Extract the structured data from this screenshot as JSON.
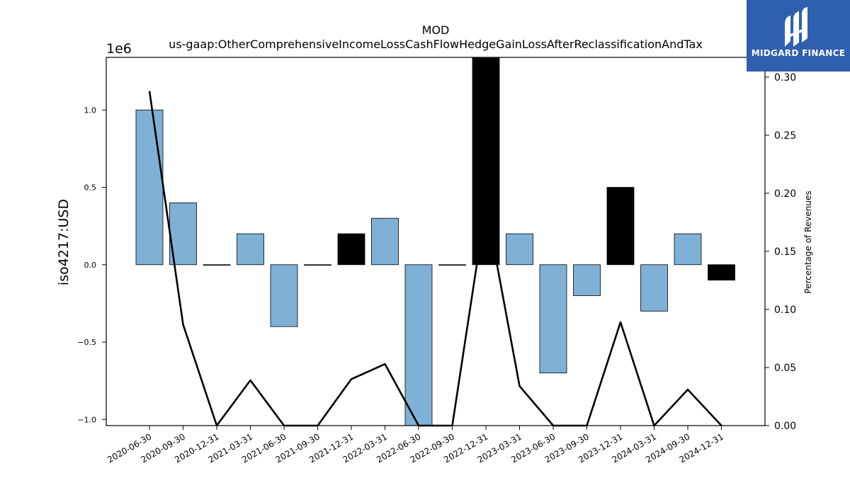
{
  "chart_data": {
    "type": "bar",
    "title_line1": "MOD",
    "title_line2": "us-gaap:OtherComprehensiveIncomeLossCashFlowHedgeGainLossAfterReclassificationAndTax",
    "ylabel": "iso4217:USD",
    "y2label": "Percentage of Revenues",
    "y_offset_label": "1e6",
    "categories": [
      "2020-06-30",
      "2020-09-30",
      "2020-12-31",
      "2021-03-31",
      "2021-06-30",
      "2021-09-30",
      "2021-12-31",
      "2022-03-31",
      "2022-06-30",
      "2022-09-30",
      "2022-12-31",
      "2023-03-31",
      "2023-06-30",
      "2023-09-30",
      "2023-12-31",
      "2024-03-31",
      "2024-09-30",
      "2024-12-31"
    ],
    "values": [
      1.0,
      0.4,
      0.0,
      0.2,
      -0.4,
      0.0,
      0.2,
      0.3,
      -1.1,
      0.0,
      1.35,
      0.2,
      -0.7,
      -0.2,
      0.5,
      -0.3,
      0.2,
      -0.1
    ],
    "bar_colors": [
      "#7fb0d5",
      "#7fb0d5",
      "#7fb0d5",
      "#7fb0d5",
      "#7fb0d5",
      "#7fb0d5",
      "#000000",
      "#7fb0d5",
      "#7fb0d5",
      "#7fb0d5",
      "#000000",
      "#7fb0d5",
      "#7fb0d5",
      "#7fb0d5",
      "#000000",
      "#7fb0d5",
      "#7fb0d5",
      "#000000"
    ],
    "ylim": [
      -1.04,
      1.34
    ],
    "yticks": [
      -1.0,
      -0.5,
      0.0,
      0.5,
      1.0
    ],
    "ytick_labels": [
      "−1.0",
      "−0.5",
      "0.0",
      "0.5",
      "1.0"
    ],
    "line_series": {
      "values": [
        0.288,
        0.087,
        0.0,
        0.039,
        -0.05,
        0.0,
        0.04,
        0.053,
        -0.2,
        0.0,
        0.19,
        0.034,
        -0.15,
        0.0,
        0.089,
        -0.06,
        0.031,
        0.0
      ]
    },
    "y2lim": [
      0.0,
      0.317
    ],
    "y2ticks": [
      0.0,
      0.05,
      0.1,
      0.15,
      0.2,
      0.25,
      0.3
    ],
    "y2tick_labels": [
      "0.00",
      "0.05",
      "0.10",
      "0.15",
      "0.20",
      "0.25",
      "0.30"
    ],
    "accent_color": "#7fb0d5",
    "highlight_color": "#000000"
  },
  "logo": {
    "text": "MIDGARD FINANCE",
    "background": "#2f5fae"
  }
}
